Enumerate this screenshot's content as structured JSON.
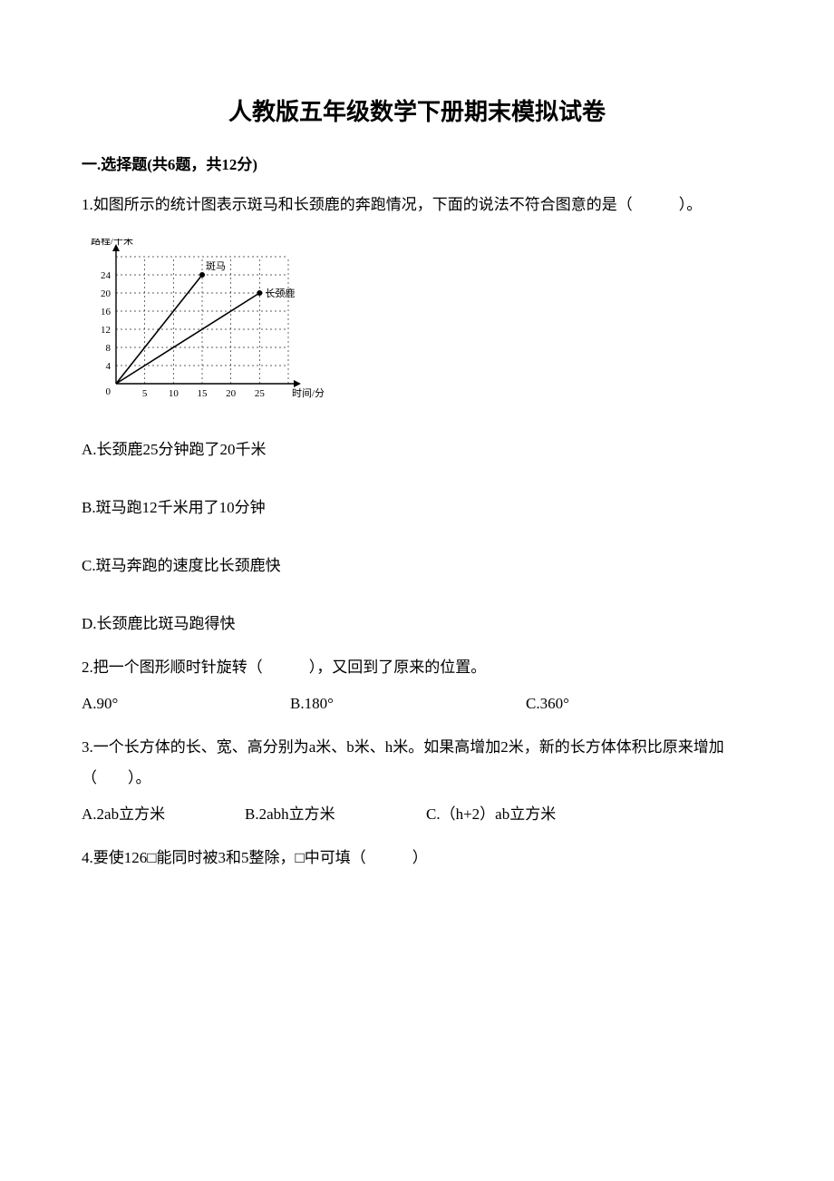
{
  "title": "人教版五年级数学下册期末模拟试卷",
  "section1": {
    "header": "一.选择题(共6题，共12分)"
  },
  "q1": {
    "stem": "1.如图所示的统计图表示斑马和长颈鹿的奔跑情况，下面的说法不符合图意的是（　　　）。",
    "chart": {
      "type": "line",
      "y_label": "路程/千米",
      "x_label": "时间/分",
      "x_ticks": [
        0,
        5,
        10,
        15,
        20,
        25
      ],
      "y_ticks": [
        4,
        8,
        12,
        16,
        20,
        24
      ],
      "origin_label": "0",
      "grid_dash": "2,3",
      "series": [
        {
          "label": "斑马",
          "end_x": 15,
          "end_y": 24
        },
        {
          "label": "长颈鹿",
          "end_x": 25,
          "end_y": 20
        }
      ],
      "axis_color": "#000000",
      "grid_color": "#2b2b2b",
      "line_color": "#000000",
      "font_size": 11
    },
    "optA": "A.长颈鹿25分钟跑了20千米",
    "optB": "B.斑马跑12千米用了10分钟",
    "optC": "C.斑马奔跑的速度比长颈鹿快",
    "optD": "D.长颈鹿比斑马跑得快"
  },
  "q2": {
    "stem": "2.把一个图形顺时针旋转（　　　），又回到了原来的位置。",
    "optA": "A.90°",
    "optB": "B.180°",
    "optC": "C.360°"
  },
  "q3": {
    "stem": "3.一个长方体的长、宽、高分别为a米、b米、h米。如果高增加2米，新的长方体体积比原来增加（　　）。",
    "optA": "A.2ab立方米",
    "optB": "B.2abh立方米",
    "optC": "C.（h+2）ab立方米"
  },
  "q4": {
    "stem": "4.要使126□能同时被3和5整除，□中可填（　　　）"
  }
}
